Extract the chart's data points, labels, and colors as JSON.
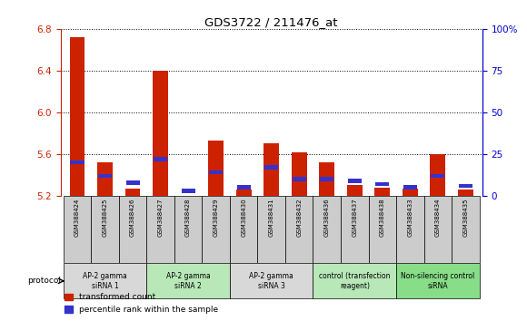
{
  "title": "GDS3722 / 211476_at",
  "samples": [
    "GSM388424",
    "GSM388425",
    "GSM388426",
    "GSM388427",
    "GSM388428",
    "GSM388429",
    "GSM388430",
    "GSM388431",
    "GSM388432",
    "GSM388436",
    "GSM388437",
    "GSM388438",
    "GSM388433",
    "GSM388434",
    "GSM388435"
  ],
  "transformed_count": [
    6.72,
    5.52,
    5.27,
    6.4,
    5.2,
    5.73,
    5.26,
    5.7,
    5.62,
    5.52,
    5.3,
    5.28,
    5.27,
    5.6,
    5.26
  ],
  "percentile_rank": [
    20,
    12,
    8,
    22,
    3,
    14,
    5,
    17,
    10,
    10,
    9,
    7,
    5,
    12,
    6
  ],
  "ylim": [
    5.2,
    6.8
  ],
  "yticks": [
    5.2,
    5.6,
    6.0,
    6.4,
    6.8
  ],
  "right_ylim": [
    0,
    100
  ],
  "right_yticks": [
    0,
    25,
    50,
    75,
    100
  ],
  "bar_color": "#cc2200",
  "percentile_color": "#3333cc",
  "bar_width": 0.55,
  "groups": [
    {
      "label": "AP-2 gamma\nsiRNA 1",
      "indices": [
        0,
        1,
        2
      ],
      "color": "#d8d8d8"
    },
    {
      "label": "AP-2 gamma\nsiRNA 2",
      "indices": [
        3,
        4,
        5
      ],
      "color": "#b8e8b8"
    },
    {
      "label": "AP-2 gamma\nsiRNA 3",
      "indices": [
        6,
        7,
        8
      ],
      "color": "#d8d8d8"
    },
    {
      "label": "control (transfection\nreagent)",
      "indices": [
        9,
        10,
        11
      ],
      "color": "#b8e8b8"
    },
    {
      "label": "Non-silencing control\nsiRNA",
      "indices": [
        12,
        13,
        14
      ],
      "color": "#88dd88"
    }
  ],
  "sample_box_color": "#cccccc",
  "protocol_label": "protocol",
  "legend_items": [
    {
      "label": "transformed count",
      "color": "#cc2200"
    },
    {
      "label": "percentile rank within the sample",
      "color": "#3333cc"
    }
  ],
  "grid_color": "black",
  "bg_color": "white",
  "left_axis_color": "#cc2200",
  "right_axis_color": "#0000cc",
  "percentile_bar_height": 0.025
}
